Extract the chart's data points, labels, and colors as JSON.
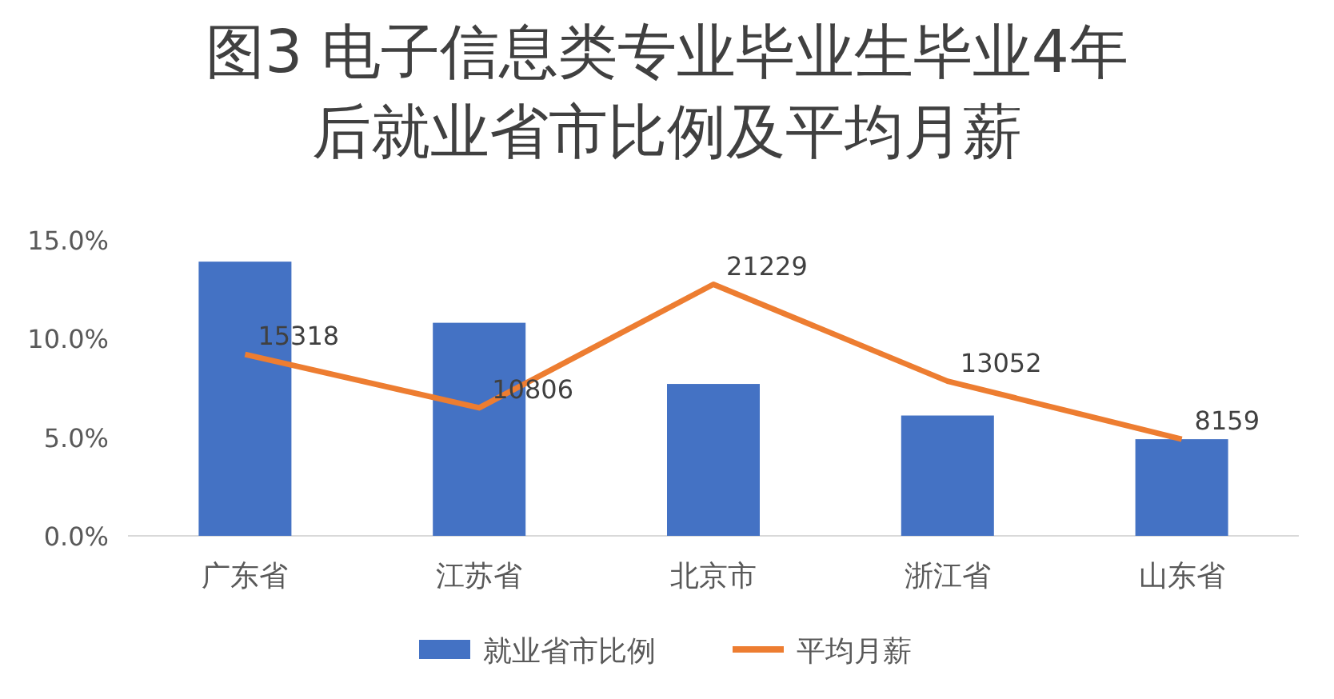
{
  "chart_data": {
    "type": "bar",
    "title": "图3 电子信息类专业毕业生毕业4年后就业省市比例及平均月薪",
    "categories": [
      "广东省",
      "江苏省",
      "北京市",
      "浙江省",
      "山东省"
    ],
    "series": [
      {
        "name": "就业省市比例",
        "color": "#4472c4",
        "values": [
          13.9,
          10.8,
          7.7,
          6.1,
          4.9
        ]
      },
      {
        "name": "平均月薪",
        "type": "line",
        "axis": "y2",
        "color": "#ed7d31",
        "values": [
          15318,
          10806,
          21229,
          13052,
          8159
        ],
        "value_labels": [
          "15318",
          "10806",
          "21229",
          "13052",
          "8159"
        ]
      }
    ],
    "ylim": [
      0,
      15
    ],
    "yticks": [
      {
        "value": 0,
        "label": "0.0%"
      },
      {
        "value": 5,
        "label": "5.0%"
      },
      {
        "value": 10,
        "label": "10.0%"
      },
      {
        "value": 15,
        "label": "15.0%"
      }
    ],
    "legend": "bottom",
    "marker": "none",
    "line_style": "solid"
  }
}
